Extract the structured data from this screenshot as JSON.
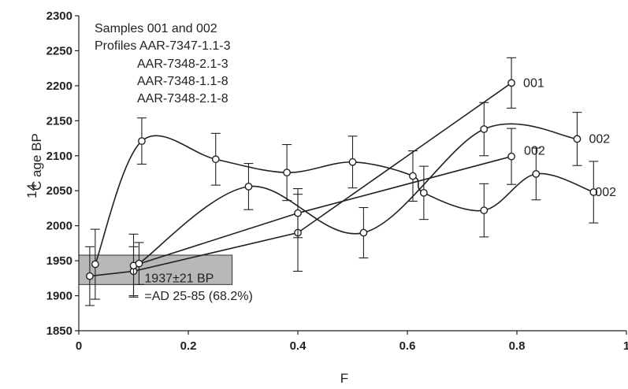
{
  "chart_data": {
    "type": "line",
    "ylabel_sup": "14",
    "ylabel_main": "C age BP",
    "xlabel": "F",
    "xlim": [
      0,
      1
    ],
    "ylim": [
      1850,
      2300
    ],
    "x_ticks": [
      0,
      0.2,
      0.4,
      0.6,
      0.8,
      1
    ],
    "x_tick_labels": [
      "0",
      "0.2",
      "0.4",
      "0.6",
      "0.8",
      "1"
    ],
    "y_ticks": [
      1850,
      1900,
      1950,
      2000,
      2050,
      2100,
      2150,
      2200,
      2250,
      2300
    ],
    "y_tick_labels": [
      "1850",
      "1900",
      "1950",
      "2000",
      "2050",
      "2100",
      "2150",
      "2200",
      "2250",
      "2300"
    ],
    "grid": false,
    "legend_text": [
      "Samples 001 and 002",
      "Profiles AAR-7347-1.1-3",
      "AAR-7348-2.1-3",
      "AAR-7348-1.1-8",
      "AAR-7348-2.1-8"
    ],
    "series": [
      {
        "name": "001",
        "style": "straight",
        "points": [
          {
            "x": 0.02,
            "y": 1928,
            "err": 42
          },
          {
            "x": 0.1,
            "y": 1935,
            "err": 35
          },
          {
            "x": 0.4,
            "y": 1990,
            "err": 55
          },
          {
            "x": 0.79,
            "y": 2204,
            "err": 36
          }
        ]
      },
      {
        "name": "002",
        "style": "straight",
        "points": [
          {
            "x": 0.1,
            "y": 1943,
            "err": 45
          },
          {
            "x": 0.4,
            "y": 2018,
            "err": 35
          },
          {
            "x": 0.79,
            "y": 2099,
            "err": 40
          }
        ]
      },
      {
        "name": "002",
        "style": "smooth",
        "points": [
          {
            "x": 0.11,
            "y": 1946,
            "err": 30
          },
          {
            "x": 0.31,
            "y": 2056,
            "err": 33
          },
          {
            "x": 0.52,
            "y": 1990,
            "err": 36
          },
          {
            "x": 0.74,
            "y": 2138,
            "err": 38
          },
          {
            "x": 0.91,
            "y": 2124,
            "err": 38
          }
        ]
      },
      {
        "name": "002",
        "style": "smooth",
        "points": [
          {
            "x": 0.03,
            "y": 1945,
            "err": 50
          },
          {
            "x": 0.115,
            "y": 2121,
            "err": 33
          },
          {
            "x": 0.25,
            "y": 2095,
            "err": 37
          },
          {
            "x": 0.38,
            "y": 2076,
            "err": 40
          },
          {
            "x": 0.5,
            "y": 2091,
            "err": 37
          },
          {
            "x": 0.61,
            "y": 2071,
            "err": 36
          },
          {
            "x": 0.63,
            "y": 2047,
            "err": 38
          },
          {
            "x": 0.74,
            "y": 2022,
            "err": 38
          },
          {
            "x": 0.835,
            "y": 2074,
            "err": 37
          },
          {
            "x": 0.94,
            "y": 2048,
            "err": 44
          }
        ]
      }
    ],
    "series_labels": [
      {
        "text": "001",
        "x": 0.79,
        "y": 2204
      },
      {
        "text": "002",
        "x": 0.79,
        "y": 2099
      },
      {
        "text": "002",
        "x": 0.91,
        "y": 2124
      },
      {
        "text": "002",
        "x": 0.94,
        "y": 2048
      }
    ],
    "calibration_box": {
      "x_range": [
        0,
        0.28
      ],
      "y_range": [
        1916,
        1958
      ],
      "label_main": "1937±21 BP",
      "label_sub": "=AD 25-85 (68.2%)",
      "color": "#b8b8b8"
    }
  }
}
